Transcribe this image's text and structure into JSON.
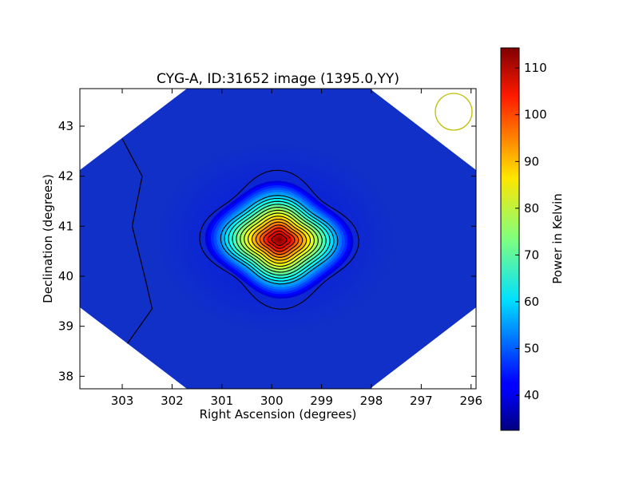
{
  "chart_data": {
    "type": "heatmap",
    "title": "CYG-A, ID:31652 image (1395.0,YY)",
    "xlabel": "Right Ascension (degrees)",
    "ylabel": "Declination (degrees)",
    "xlim": [
      303.85,
      295.9
    ],
    "ylim": [
      37.75,
      43.75
    ],
    "x_ticks": [
      {
        "value": 303,
        "label": "303"
      },
      {
        "value": 302,
        "label": "302"
      },
      {
        "value": 301,
        "label": "301"
      },
      {
        "value": 300,
        "label": "300"
      },
      {
        "value": 299,
        "label": "299"
      },
      {
        "value": 298,
        "label": "298"
      },
      {
        "value": 297,
        "label": "297"
      },
      {
        "value": 296,
        "label": "296"
      }
    ],
    "y_ticks": [
      {
        "value": 38,
        "label": "38"
      },
      {
        "value": 39,
        "label": "39"
      },
      {
        "value": 40,
        "label": "40"
      },
      {
        "value": 41,
        "label": "41"
      },
      {
        "value": 42,
        "label": "42"
      },
      {
        "value": 43,
        "label": "43"
      }
    ],
    "colorbar": {
      "label": "Power in Kelvin",
      "min": 32.5,
      "max": 114.3,
      "ticks": [
        {
          "value": 40,
          "label": "40"
        },
        {
          "value": 50,
          "label": "50"
        },
        {
          "value": 60,
          "label": "60"
        },
        {
          "value": 70,
          "label": "70"
        },
        {
          "value": 80,
          "label": "80"
        },
        {
          "value": 90,
          "label": "90"
        },
        {
          "value": 100,
          "label": "100"
        },
        {
          "value": 110,
          "label": "110"
        }
      ]
    },
    "colormap": "jet",
    "background_color": "#ffffff",
    "source_peak": {
      "ra": 299.85,
      "dec": 40.73,
      "value": 114
    },
    "contour_levels": [
      40,
      45,
      50,
      55,
      60,
      65,
      70,
      75,
      80,
      85,
      90,
      95,
      100,
      105,
      110
    ],
    "beam_color": "#bfbf00",
    "contour_color": "#000000"
  }
}
